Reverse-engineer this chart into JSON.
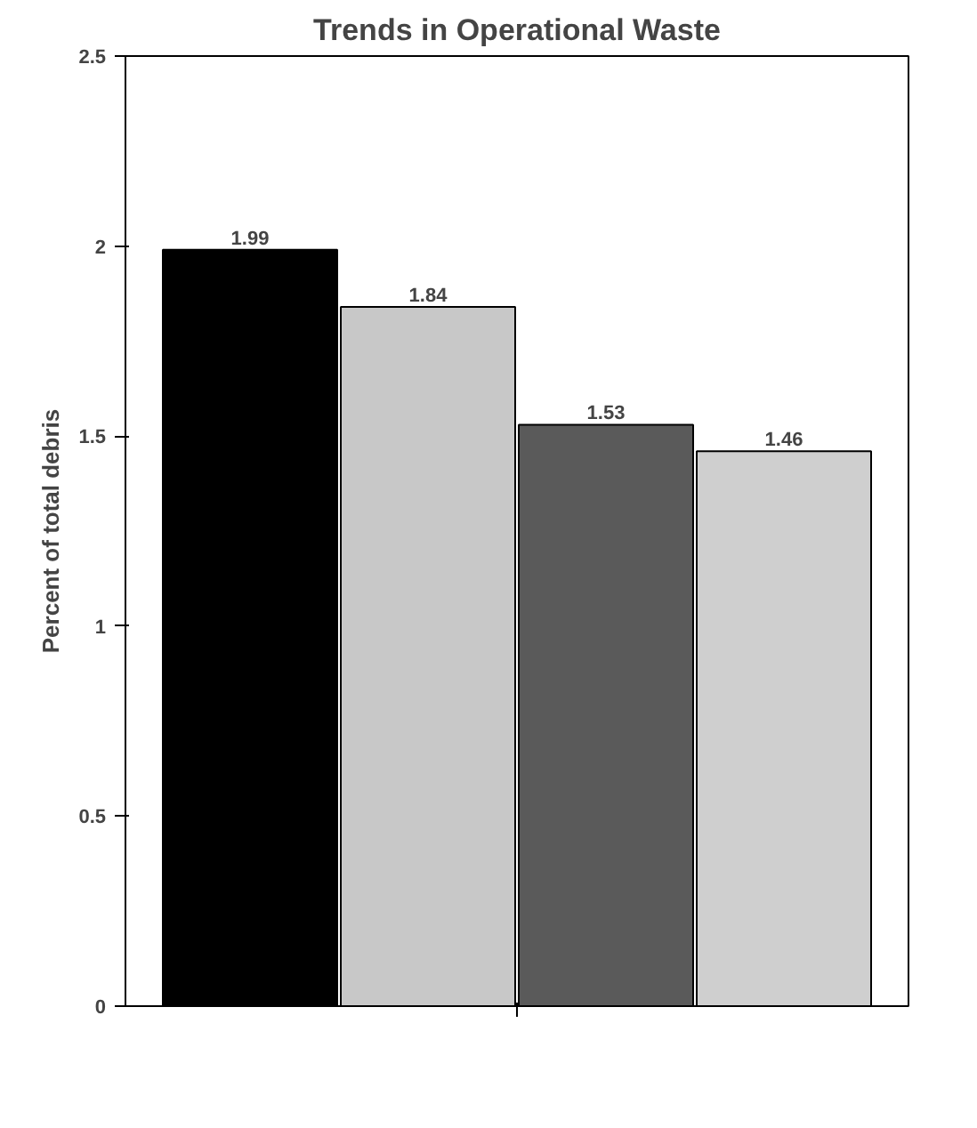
{
  "chart_data": {
    "type": "bar",
    "title": "Trends in Operational Waste",
    "ylabel": "Percent of total debris",
    "categories": [
      null,
      null,
      null,
      null
    ],
    "values": [
      1.99,
      1.84,
      1.53,
      1.46
    ],
    "colors": [
      "#000000",
      "#c8c8c8",
      "#5a5a5a",
      "#cfcfcf"
    ],
    "ylim": [
      0,
      2.5
    ],
    "yticks": [
      0,
      0.5,
      1,
      1.5,
      2,
      2.5
    ],
    "data_labels": true
  }
}
